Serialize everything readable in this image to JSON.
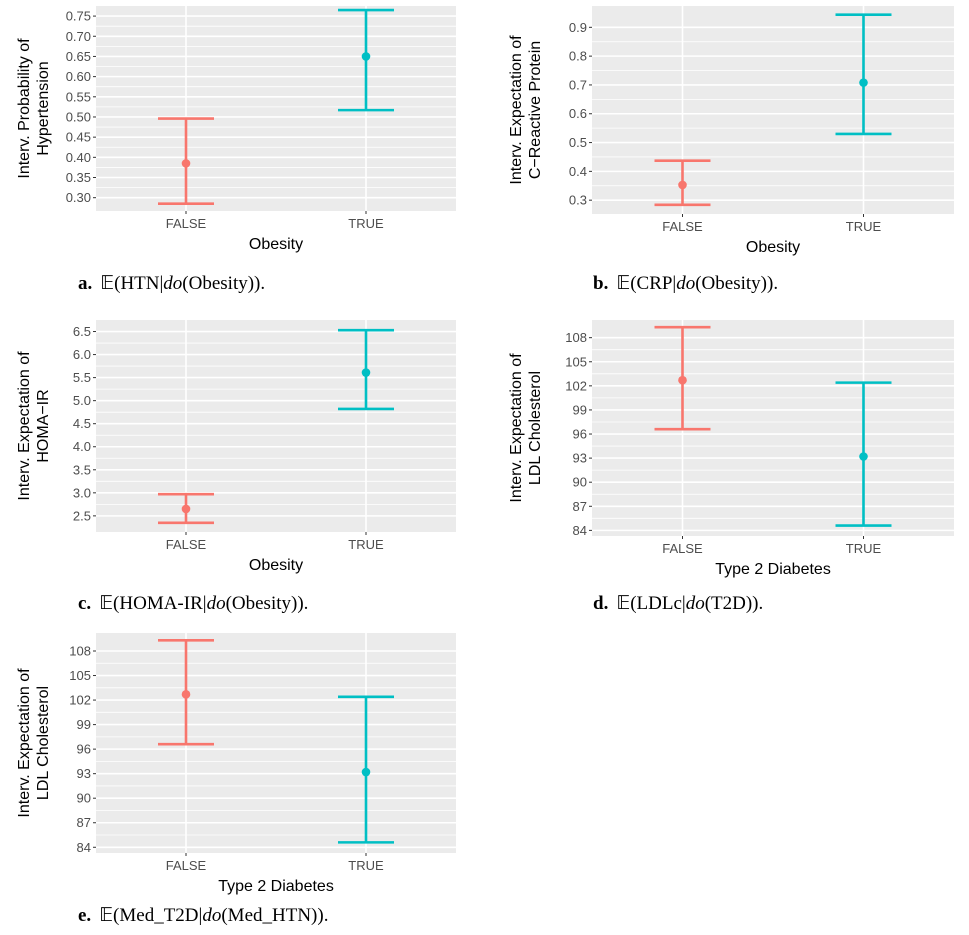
{
  "colors": {
    "false": "#F8766D",
    "true": "#00BFC4",
    "panel": "#EBEBEB",
    "grid": "#FFFFFF"
  },
  "chart_data": [
    {
      "type": "errorbar",
      "id": "a",
      "ylabel": [
        "Interv. Probability of",
        "Hypertension"
      ],
      "xlabel": "Obesity",
      "categories": [
        "FALSE",
        "TRUE"
      ],
      "ylim": [
        0.267,
        0.775
      ],
      "yticks": [
        "0.30",
        "0.35",
        "0.40",
        "0.45",
        "0.50",
        "0.55",
        "0.60",
        "0.65",
        "0.70",
        "0.75"
      ],
      "series": [
        {
          "category": "FALSE",
          "mean": 0.385,
          "lower": 0.285,
          "upper": 0.496
        },
        {
          "category": "TRUE",
          "mean": 0.65,
          "lower": 0.517,
          "upper": 0.765
        }
      ],
      "caption": {
        "letter": "a.",
        "pre": "𝔼(HTN|",
        "it": "do",
        "post": "(Obesity))."
      }
    },
    {
      "type": "errorbar",
      "id": "b",
      "ylabel": [
        "Interv. Expectation of",
        "C−Reactive Protein"
      ],
      "xlabel": "Obesity",
      "categories": [
        "FALSE",
        "TRUE"
      ],
      "ylim": [
        0.252,
        0.974
      ],
      "yticks": [
        "0.3",
        "0.4",
        "0.5",
        "0.6",
        "0.7",
        "0.8",
        "0.9"
      ],
      "series": [
        {
          "category": "FALSE",
          "mean": 0.353,
          "lower": 0.284,
          "upper": 0.437
        },
        {
          "category": "TRUE",
          "mean": 0.708,
          "lower": 0.53,
          "upper": 0.944
        }
      ],
      "caption": {
        "letter": "b.",
        "pre": "𝔼(CRP|",
        "it": "do",
        "post": "(Obesity))."
      }
    },
    {
      "type": "errorbar",
      "id": "c",
      "ylabel": [
        "Interv. Expectation of",
        "HOMA−IR"
      ],
      "xlabel": "Obesity",
      "categories": [
        "FALSE",
        "TRUE"
      ],
      "ylim": [
        2.15,
        6.75
      ],
      "yticks": [
        "2.5",
        "3.0",
        "3.5",
        "4.0",
        "4.5",
        "5.0",
        "5.5",
        "6.0",
        "6.5"
      ],
      "series": [
        {
          "category": "FALSE",
          "mean": 2.65,
          "lower": 2.35,
          "upper": 2.97
        },
        {
          "category": "TRUE",
          "mean": 5.61,
          "lower": 4.82,
          "upper": 6.53
        }
      ],
      "caption": {
        "letter": "c.",
        "pre": "𝔼(HOMA-IR|",
        "it": "do",
        "post": "(Obesity))."
      }
    },
    {
      "type": "errorbar",
      "id": "d",
      "ylabel": [
        "Interv. Expectation of",
        "LDL Cholesterol"
      ],
      "xlabel": "Type 2 Diabetes",
      "categories": [
        "FALSE",
        "TRUE"
      ],
      "ylim": [
        83.3,
        110.2
      ],
      "yticks": [
        "84",
        "87",
        "90",
        "93",
        "96",
        "99",
        "102",
        "105",
        "108"
      ],
      "series": [
        {
          "category": "FALSE",
          "mean": 102.7,
          "lower": 96.6,
          "upper": 109.3
        },
        {
          "category": "TRUE",
          "mean": 93.2,
          "lower": 84.6,
          "upper": 102.4
        }
      ],
      "caption": {
        "letter": "d.",
        "pre": "𝔼(LDLc|",
        "it": "do",
        "post": "(T2D))."
      }
    },
    {
      "type": "errorbar",
      "id": "e",
      "ylabel": [
        "Interv. Expectation of",
        "LDL Cholesterol"
      ],
      "xlabel": "Type 2 Diabetes",
      "categories": [
        "FALSE",
        "TRUE"
      ],
      "ylim": [
        83.3,
        110.2
      ],
      "yticks": [
        "84",
        "87",
        "90",
        "93",
        "96",
        "99",
        "102",
        "105",
        "108"
      ],
      "series": [
        {
          "category": "FALSE",
          "mean": 102.7,
          "lower": 96.6,
          "upper": 109.3
        },
        {
          "category": "TRUE",
          "mean": 93.2,
          "lower": 84.6,
          "upper": 102.4
        }
      ],
      "caption": {
        "letter": "e.",
        "pre": "𝔼(Med_T2D|",
        "it": "do",
        "post": "(Med_HTN))."
      }
    }
  ]
}
